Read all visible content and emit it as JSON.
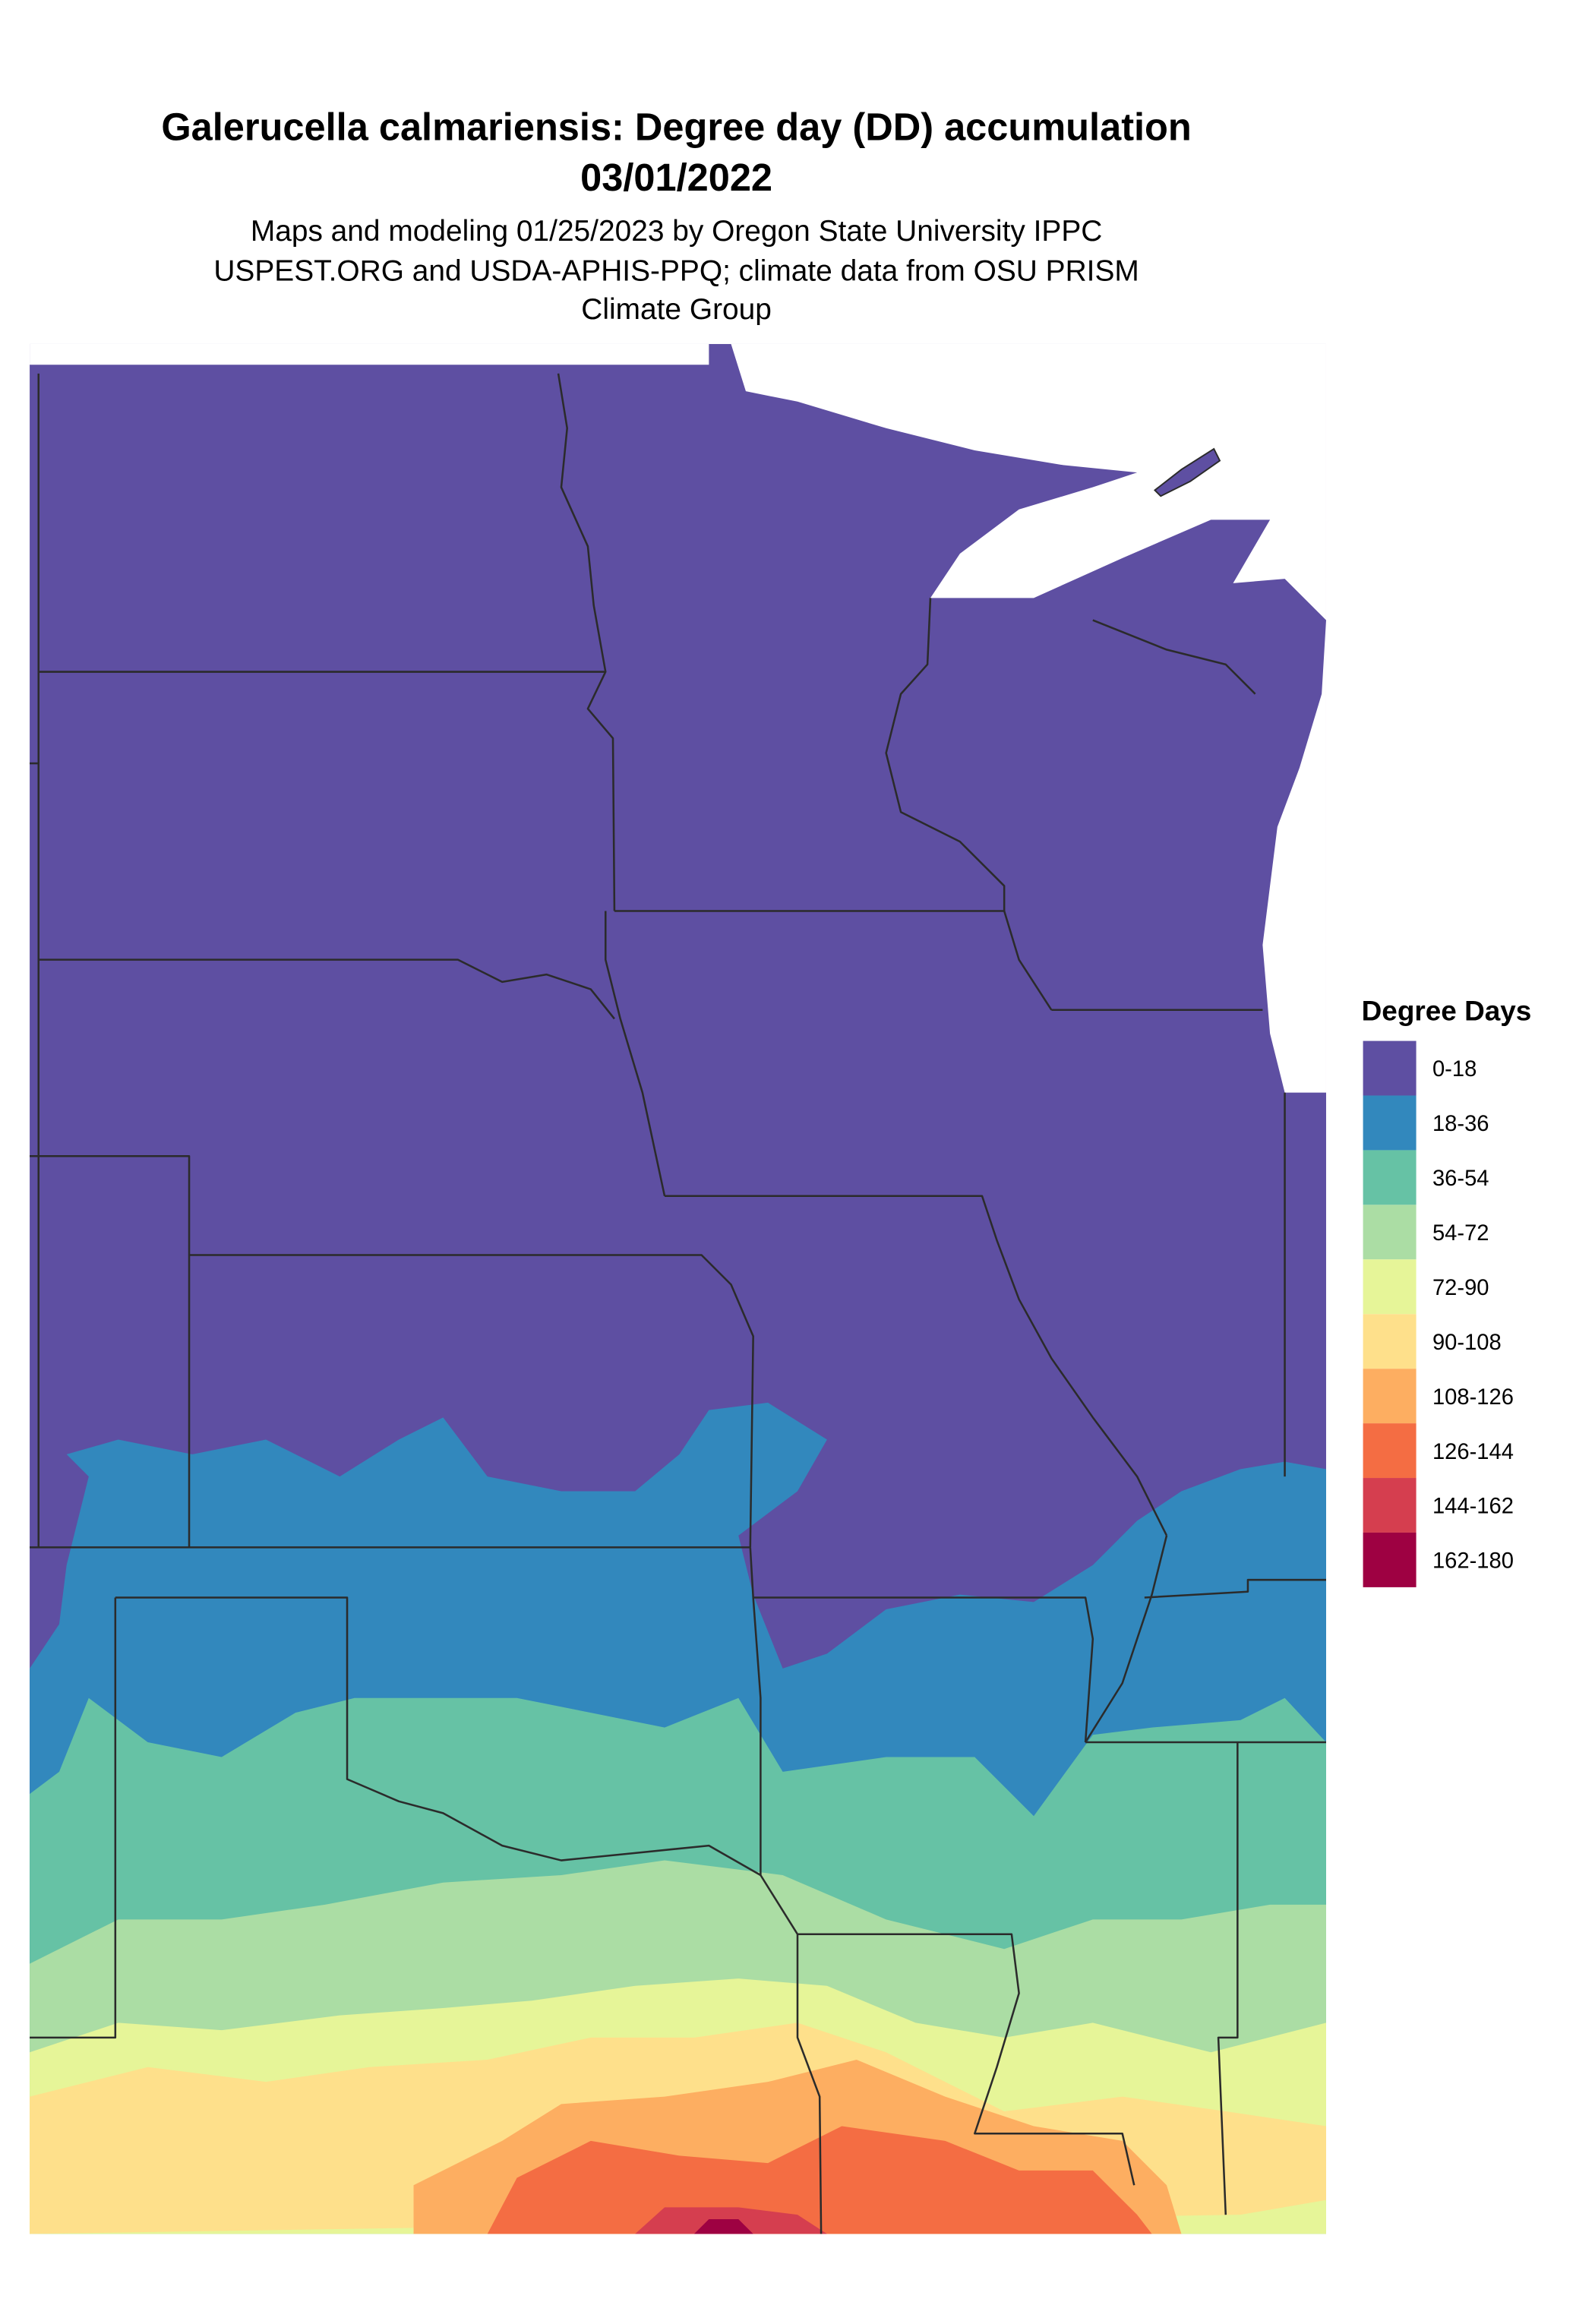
{
  "title": {
    "line1": "Galerucella calmariensis: Degree day (DD) accumulation",
    "line2": "03/01/2022"
  },
  "subtitle": {
    "line1": "Maps and modeling 01/25/2023 by Oregon State University IPPC",
    "line2": "USPEST.ORG and USDA-APHIS-PPQ; climate data from OSU PRISM",
    "line3": "Climate Group"
  },
  "legend": {
    "title": "Degree Days",
    "placement": "right",
    "items": [
      {
        "label": "0-18",
        "color": "#5E4FA2"
      },
      {
        "label": "18-36",
        "color": "#3288BD"
      },
      {
        "label": "36-54",
        "color": "#66C2A5"
      },
      {
        "label": "54-72",
        "color": "#ABDDA4"
      },
      {
        "label": "72-90",
        "color": "#E6F598"
      },
      {
        "label": "90-108",
        "color": "#FEE08B"
      },
      {
        "label": "108-126",
        "color": "#FDAE61"
      },
      {
        "label": "126-144",
        "color": "#F46D43"
      },
      {
        "label": "144-162",
        "color": "#D53E4F"
      },
      {
        "label": "162-180",
        "color": "#9E0142"
      }
    ]
  },
  "map": {
    "region": "North-central and south-central United States",
    "state_border_color": "#2b2b2b",
    "background_color": "#ffffff"
  }
}
